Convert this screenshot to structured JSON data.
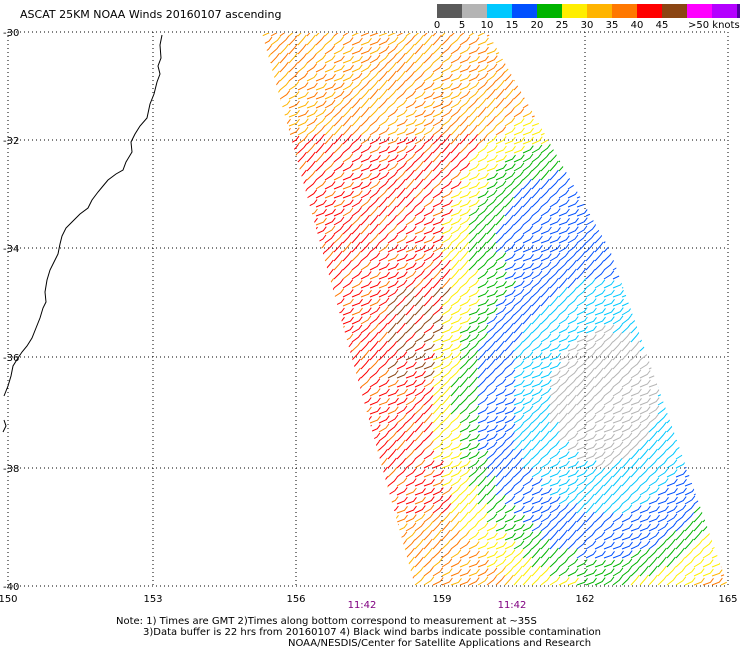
{
  "title": "ASCAT 25KM NOAA Winds 20160107 ascending",
  "legend": {
    "labels": [
      "0",
      "5",
      "10",
      "15",
      "20",
      "25",
      "30",
      "35",
      "40",
      "45",
      ">50 knots"
    ],
    "colors": [
      "#5a5a5a",
      "#b4b4b4",
      "#00c8ff",
      "#0050ff",
      "#00b400",
      "#ffee00",
      "#ffb400",
      "#ff7800",
      "#ff0000",
      "#8b4513",
      "#ff00ff",
      "#b400ff",
      "#5000a0"
    ]
  },
  "axes": {
    "lat_labels": [
      "-30",
      "-32",
      "-34",
      "-36",
      "-38",
      "-40"
    ],
    "lon_labels": [
      "150",
      "153",
      "156",
      "159",
      "162",
      "165"
    ]
  },
  "times": [
    "11:42",
    "11:42"
  ],
  "notes": [
    "Note: 1) Times are GMT 2)Times along bottom correspond to measurement at ~35S",
    "3)Data buffer is 22 hrs from 20160107 4) Black wind barbs indicate possible contamination",
    "NOAA/NESDIS/Center for Satellite Applications and Research"
  ]
}
